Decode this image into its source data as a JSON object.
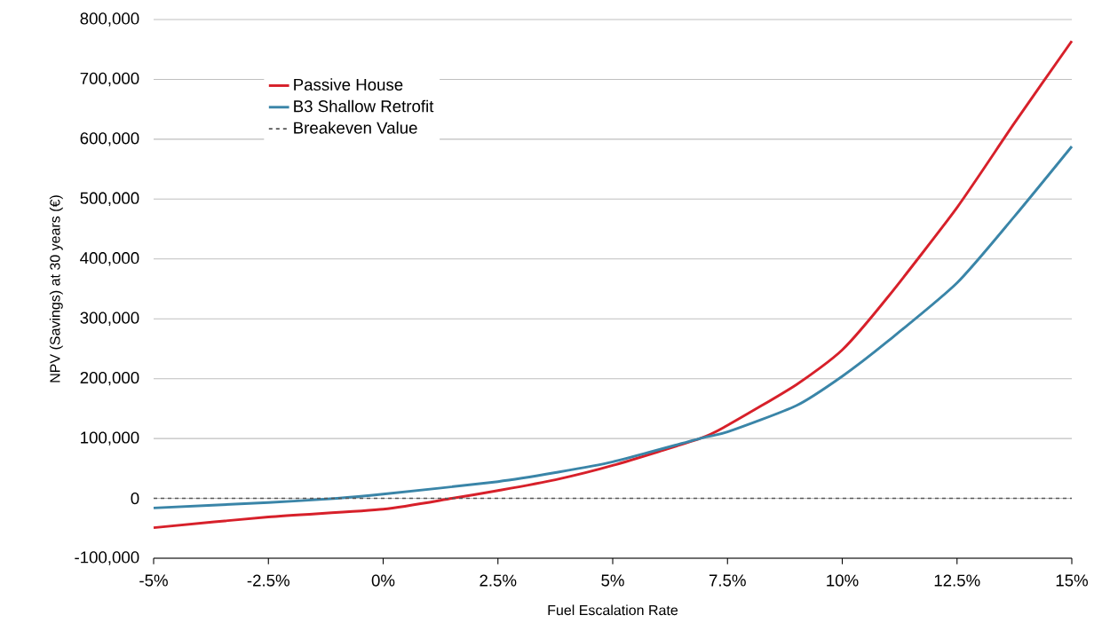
{
  "chart_data": {
    "type": "line",
    "xlabel": "Fuel Escalation Rate",
    "ylabel": "NPV (Savings) at 30 years (€)",
    "series": [
      {
        "name": "Passive House",
        "color": "#d7202a",
        "x": [
          -5,
          -2.5,
          0,
          1.5,
          2.5,
          3.75,
          5,
          6.9,
          7.5,
          9,
          10,
          11,
          12.5,
          13.75,
          15
        ],
        "values": [
          -49000,
          -31000,
          -18000,
          0,
          13000,
          31000,
          55000,
          100000,
          122000,
          190000,
          248000,
          337000,
          486000,
          627000,
          764000
        ]
      },
      {
        "name": "B3 Shallow Retrofit",
        "color": "#3a85a8",
        "x": [
          -5,
          -2.5,
          -1,
          0,
          2.5,
          3.75,
          5,
          6.9,
          7.5,
          9,
          10,
          11,
          12.5,
          13.75,
          15
        ],
        "values": [
          -16000,
          -7000,
          0,
          7000,
          28000,
          43000,
          61000,
          100000,
          111000,
          155000,
          204000,
          263000,
          360000,
          471000,
          588000
        ]
      }
    ],
    "ref_lines": [
      {
        "axis": "y",
        "value": 0,
        "label": "Breakeven Value",
        "color": "#555555",
        "line_style": "dashed"
      }
    ],
    "xlim": [
      -5,
      15
    ],
    "xticks": [
      {
        "value": -5,
        "label": "-5%"
      },
      {
        "value": -2.5,
        "label": "-2.5%"
      },
      {
        "value": 0,
        "label": "0%"
      },
      {
        "value": 2.5,
        "label": "2.5%"
      },
      {
        "value": 5,
        "label": "5%"
      },
      {
        "value": 7.5,
        "label": "7.5%"
      },
      {
        "value": 10,
        "label": "10%"
      },
      {
        "value": 12.5,
        "label": "12.5%"
      },
      {
        "value": 15,
        "label": "15%"
      }
    ],
    "ylim": [
      -100000,
      800000
    ],
    "yticks": [
      {
        "value": -100000,
        "label": "-100,000"
      },
      {
        "value": 0,
        "label": "0"
      },
      {
        "value": 100000,
        "label": "100,000"
      },
      {
        "value": 200000,
        "label": "200,000"
      },
      {
        "value": 300000,
        "label": "300,000"
      },
      {
        "value": 400000,
        "label": "400,000"
      },
      {
        "value": 500000,
        "label": "500,000"
      },
      {
        "value": 600000,
        "label": "600,000"
      },
      {
        "value": 700000,
        "label": "700,000"
      },
      {
        "value": 800000,
        "label": "800,000"
      }
    ],
    "grid": "y",
    "legend": "top left",
    "marker": "none",
    "line_style": "solid"
  }
}
